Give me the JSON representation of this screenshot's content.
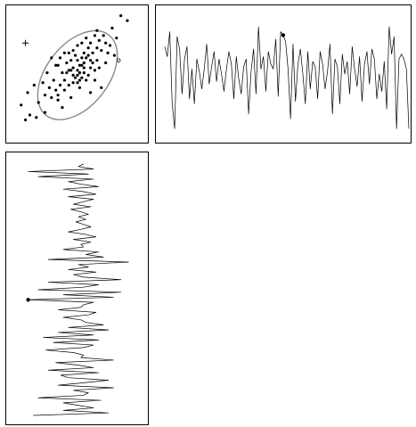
{
  "chart_data": [
    {
      "type": "scatter",
      "panel": "correlation-scatter",
      "title": "",
      "xlabel": "",
      "ylabel": "",
      "axes_shown": false,
      "confidence_ellipse": {
        "center": [
          0,
          0
        ],
        "semi_major": 2.35,
        "semi_minor": 1.25,
        "angle_deg": 52,
        "color": "#888888"
      },
      "points": [
        [
          -2.6,
          -1.2
        ],
        [
          -2.2,
          -1.6
        ],
        [
          -1.9,
          -1.7
        ],
        [
          -2.3,
          -0.7
        ],
        [
          -1.5,
          -1.5
        ],
        [
          -1.2,
          -0.9
        ],
        [
          -1.3,
          -0.5
        ],
        [
          -0.9,
          -1.0
        ],
        [
          -0.6,
          -0.6
        ],
        [
          -1.4,
          0.1
        ],
        [
          -1.0,
          0.4
        ],
        [
          -0.7,
          0.1
        ],
        [
          -0.5,
          0.5
        ],
        [
          -0.3,
          0.2
        ],
        [
          -0.2,
          -0.3
        ],
        [
          0.0,
          0.0
        ],
        [
          0.2,
          0.4
        ],
        [
          0.3,
          0.1
        ],
        [
          0.1,
          -0.5
        ],
        [
          0.4,
          0.7
        ],
        [
          0.6,
          0.3
        ],
        [
          0.7,
          0.9
        ],
        [
          0.5,
          1.1
        ],
        [
          0.9,
          0.6
        ],
        [
          1.1,
          1.0
        ],
        [
          1.3,
          0.5
        ],
        [
          1.0,
          1.4
        ],
        [
          0.8,
          1.6
        ],
        [
          1.5,
          1.2
        ],
        [
          1.7,
          0.8
        ],
        [
          -0.4,
          0.9
        ],
        [
          -0.8,
          0.7
        ],
        [
          -0.1,
          0.8
        ],
        [
          0.2,
          1.3
        ],
        [
          0.4,
          -0.2
        ],
        [
          0.6,
          -0.7
        ],
        [
          -0.6,
          -0.2
        ],
        [
          -1.1,
          -0.2
        ],
        [
          -1.6,
          -0.3
        ],
        [
          -0.3,
          -0.9
        ],
        [
          0.0,
          0.6
        ],
        [
          0.3,
          0.5
        ],
        [
          -0.2,
          0.3
        ],
        [
          0.1,
          0.1
        ],
        [
          0.5,
          0.0
        ],
        [
          -0.4,
          -0.4
        ],
        [
          0.8,
          0.2
        ],
        [
          1.2,
          1.6
        ],
        [
          0.6,
          1.3
        ],
        [
          -0.9,
          0.4
        ],
        [
          -0.1,
          -0.1
        ],
        [
          0.2,
          -0.1
        ],
        [
          0.0,
          -0.3
        ],
        [
          -0.5,
          0.1
        ],
        [
          0.7,
          0.5
        ],
        [
          0.9,
          1.1
        ],
        [
          1.4,
          0.9
        ],
        [
          -1.8,
          -1.1
        ],
        [
          -2.0,
          -0.4
        ],
        [
          -0.7,
          -1.3
        ],
        [
          0.3,
          0.9
        ],
        [
          0.1,
          0.4
        ],
        [
          -0.3,
          0.6
        ],
        [
          0.5,
          0.8
        ],
        [
          1.0,
          0.3
        ],
        [
          -1.2,
          0.7
        ],
        [
          -0.8,
          -0.4
        ],
        [
          0.4,
          1.5
        ],
        [
          0.2,
          0.7
        ],
        [
          -0.6,
          0.9
        ],
        [
          1.6,
          1.9
        ],
        [
          2.0,
          2.4
        ],
        [
          2.3,
          2.2
        ],
        [
          1.8,
          1.5
        ],
        [
          0.0,
          0.2
        ],
        [
          -0.2,
          0.0
        ],
        [
          0.1,
          -0.2
        ],
        [
          0.3,
          0.3
        ],
        [
          -0.4,
          0.2
        ],
        [
          0.6,
          0.6
        ],
        [
          -1.5,
          -0.8
        ],
        [
          -1.0,
          -0.6
        ],
        [
          0.8,
          -0.2
        ],
        [
          1.1,
          -0.5
        ],
        [
          -0.2,
          1.0
        ],
        [
          0.0,
          1.2
        ],
        [
          0.9,
          1.8
        ],
        [
          -0.9,
          -0.8
        ],
        [
          -2.4,
          -1.8
        ],
        [
          1.3,
          1.3
        ]
      ],
      "marker_plus": [
        -2.4,
        1.3
      ],
      "marker_circle": [
        1.9,
        0.6
      ]
    },
    {
      "type": "line",
      "panel": "trace-horizontal",
      "title": "",
      "xlabel": "",
      "ylabel": "",
      "axes_shown": false,
      "highlight_index": 48,
      "values": [
        0.55,
        0.35,
        0.85,
        -0.6,
        -1.1,
        0.75,
        0.5,
        -0.4,
        0.3,
        0.55,
        -0.5,
        0.1,
        -0.6,
        0.3,
        0.05,
        -0.3,
        0.1,
        0.6,
        -0.2,
        0.15,
        0.45,
        -0.15,
        0.3,
        0.0,
        -0.35,
        0.1,
        0.45,
        0.2,
        -0.5,
        0.35,
        -0.1,
        -0.4,
        0.15,
        0.3,
        -0.8,
        0.05,
        0.5,
        -0.4,
        0.95,
        0.1,
        0.35,
        -0.35,
        0.45,
        0.2,
        0.1,
        0.7,
        -0.45,
        0.85,
        0.78,
        0.65,
        0.1,
        -0.9,
        0.6,
        -0.55,
        0.2,
        0.5,
        0.0,
        -0.6,
        0.45,
        -0.3,
        0.25,
        0.15,
        -0.5,
        0.45,
        0.2,
        -0.3,
        0.05,
        0.6,
        -0.8,
        0.3,
        0.15,
        -0.6,
        0.4,
        0.0,
        0.25,
        -0.4,
        0.55,
        0.1,
        -0.25,
        0.35,
        -0.55,
        0.2,
        0.45,
        -0.2,
        0.5,
        0.3,
        -0.5,
        0.0,
        -0.35,
        0.25,
        -0.7,
        0.95,
        0.4,
        0.75,
        -1.1,
        0.3,
        0.4,
        0.3,
        0.1,
        -1.1
      ]
    },
    {
      "type": "line",
      "panel": "trace-vertical",
      "orientation": "vertical",
      "title": "",
      "xlabel": "",
      "ylabel": "",
      "axes_shown": false,
      "highlight_index": 54,
      "values": [
        0.1,
        0.0,
        0.3,
        -1.0,
        0.2,
        -0.8,
        0.3,
        -0.2,
        0.05,
        0.4,
        -0.3,
        0.1,
        0.35,
        -0.2,
        0.3,
        0.1,
        -0.1,
        0.25,
        -0.15,
        0.05,
        0.2,
        0.0,
        0.15,
        -0.05,
        0.1,
        0.25,
        0.05,
        -0.2,
        0.15,
        0.35,
        -0.1,
        0.25,
        0.05,
        0.1,
        -0.3,
        0.4,
        0.15,
        0.5,
        -0.6,
        1.0,
        0.0,
        0.2,
        -0.2,
        0.35,
        -0.1,
        0.1,
        0.85,
        -0.6,
        0.4,
        0.1,
        -0.8,
        0.85,
        -0.3,
        0.7,
        -1.0,
        0.3,
        0.1,
        0.05,
        -0.4,
        0.35,
        0.2,
        -0.3,
        0.05,
        0.15,
        0.5,
        -0.2,
        0.6,
        -0.4,
        0.3,
        -0.7,
        0.4,
        -0.5,
        0.3,
        0.1,
        -0.65,
        -0.1,
        0.1,
        0.05,
        0.7,
        -0.45,
        0.0,
        0.3,
        -0.6,
        0.4,
        -0.35,
        -0.2,
        0.6,
        0.1,
        -0.4,
        0.7,
        -0.1,
        0.2,
        0.1,
        -0.8,
        0.45,
        -0.3,
        0.0,
        0.3,
        -0.3,
        0.6,
        -0.9
      ]
    }
  ]
}
